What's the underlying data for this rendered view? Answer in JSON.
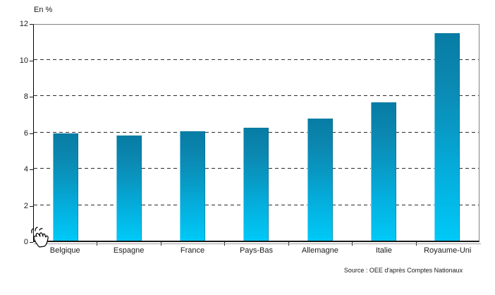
{
  "chart_data": {
    "type": "bar",
    "title": "",
    "xlabel": "",
    "ylabel": "En %",
    "categories": [
      "Belgique",
      "Espagne",
      "France",
      "Pays-Bas",
      "Allemagne",
      "Italie",
      "Royaume-Uni"
    ],
    "values": [
      5.9,
      5.8,
      6.0,
      6.2,
      6.7,
      7.6,
      11.4
    ],
    "ylim": [
      0,
      12
    ],
    "y_ticks": [
      0,
      2,
      4,
      6,
      8,
      10,
      12
    ],
    "grid": "horizontal-dashed",
    "legend_position": "none",
    "bar_color_top": "#077ca4",
    "bar_color_bottom": "#00c9f7",
    "frame_color": "#808080",
    "axis_color": "#000000"
  },
  "labels": {
    "y_axis_unit": "En %",
    "source": "Source : OEE d'après Comptes Nationaux"
  },
  "icons": {
    "cursor": "hand-cursor"
  }
}
